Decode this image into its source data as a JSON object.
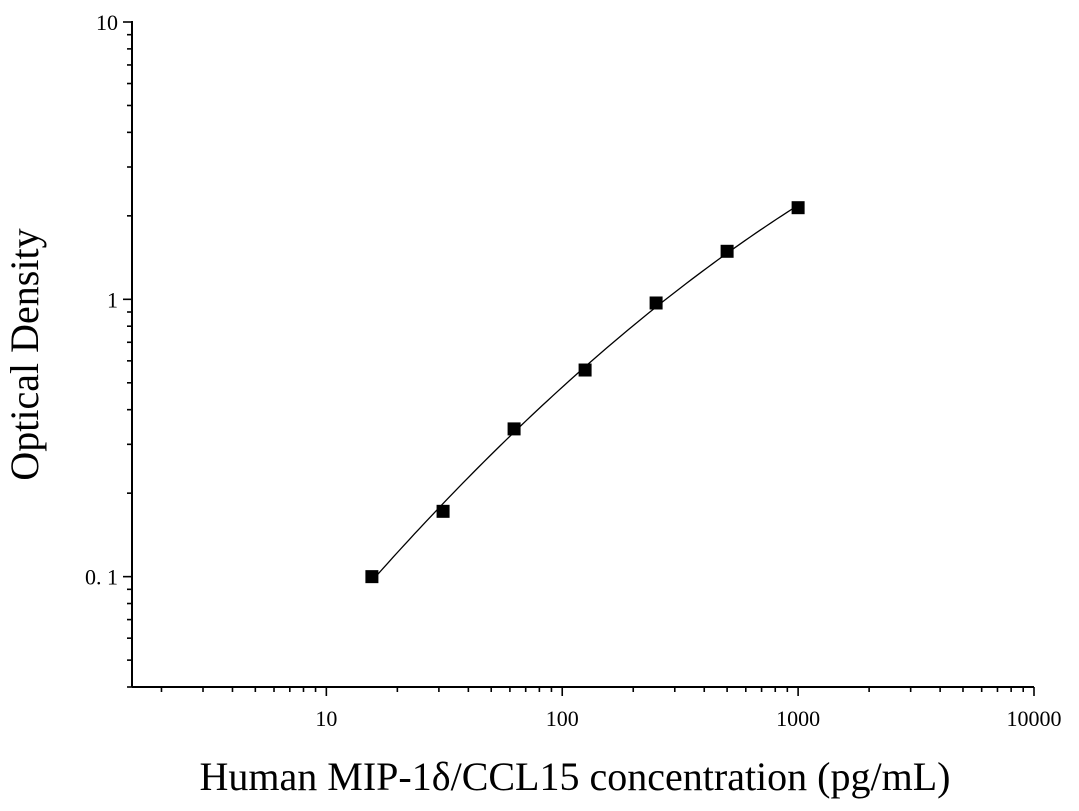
{
  "chart_data": {
    "type": "scatter",
    "title": "",
    "xlabel": "Human MIP-1δ/CCL15 concentration (pg/mL)",
    "ylabel": "Optical Density",
    "x_scale": "log",
    "y_scale": "log",
    "xlim": [
      1.5,
      10000
    ],
    "ylim": [
      0.04,
      10
    ],
    "x_ticks": [
      {
        "value": 10,
        "label": "10"
      },
      {
        "value": 100,
        "label": "100"
      },
      {
        "value": 1000,
        "label": "1000"
      },
      {
        "value": 10000,
        "label": "10000"
      }
    ],
    "y_ticks": [
      {
        "value": 0.1,
        "label": "0. 1"
      },
      {
        "value": 1,
        "label": "1"
      },
      {
        "value": 10,
        "label": "10"
      }
    ],
    "grid": false,
    "legend": null,
    "series": [
      {
        "marker": "square",
        "fit_line": true,
        "x": [
          15.6,
          31.25,
          62.5,
          125,
          250,
          500,
          1000
        ],
        "y": [
          0.1,
          0.172,
          0.341,
          0.556,
          0.97,
          1.49,
          2.14
        ]
      }
    ],
    "colors": {
      "marker": "#000000",
      "line": "#000000",
      "axis": "#000000"
    }
  }
}
